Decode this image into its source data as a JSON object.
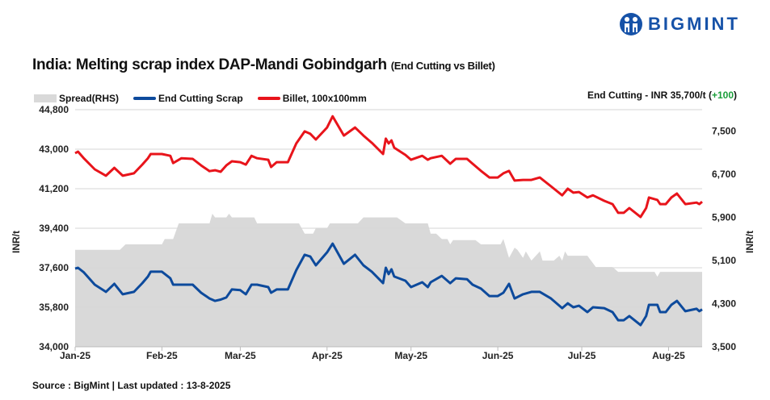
{
  "logo": {
    "text": "BIGMINT",
    "color": "#1652a8"
  },
  "title": {
    "main": "India: Melting scrap index DAP-Mandi Gobindgarh",
    "sub": "(End Cutting vs Billet)"
  },
  "headline": {
    "prefix": "End Cutting - INR 35,700/t (",
    "change": "+100",
    "suffix": ")",
    "change_color": "#1a9e3a"
  },
  "source": "Source : BigMint | Last updated : 13-8-2025",
  "chart_data": {
    "type": "line",
    "legend_position": "top-left",
    "grid": "horizontal",
    "xlabel": "",
    "ylabel_left": "INR/t",
    "ylabel_right": "INR/t",
    "ylim_left": [
      34000,
      44800
    ],
    "ylim_right": [
      3500,
      7900
    ],
    "yticks_left": [
      "34,000",
      "35,800",
      "37,600",
      "39,400",
      "41,200",
      "43,000",
      "44,800"
    ],
    "yticks_left_values": [
      34000,
      35800,
      37600,
      39400,
      41200,
      43000,
      44800
    ],
    "yticks_right": [
      "3,500",
      "4,300",
      "5,100",
      "5,900",
      "6,700",
      "7,500"
    ],
    "yticks_right_values": [
      3500,
      4300,
      5100,
      5900,
      6700,
      7500
    ],
    "xticks": [
      "Jan-25",
      "Feb-25",
      "Mar-25",
      "Apr-25",
      "May-25",
      "Jun-25",
      "Jul-25",
      "Aug-25"
    ],
    "xticks_dates": [
      "2025-01-01",
      "2025-02-01",
      "2025-03-01",
      "2025-04-01",
      "2025-05-01",
      "2025-06-01",
      "2025-07-01",
      "2025-08-01"
    ],
    "x_range": [
      "2025-01-01",
      "2025-08-13"
    ],
    "series": [
      {
        "name": "Spread(RHS)",
        "type": "area",
        "axis": "right",
        "color": "#d9d9d9",
        "points": [
          [
            "2025-01-01",
            5300
          ],
          [
            "2025-01-17",
            5300
          ],
          [
            "2025-01-19",
            5400
          ],
          [
            "2025-02-01",
            5400
          ],
          [
            "2025-02-02",
            5500
          ],
          [
            "2025-02-05",
            5500
          ],
          [
            "2025-02-07",
            5790
          ],
          [
            "2025-02-18",
            5790
          ],
          [
            "2025-02-19",
            5970
          ],
          [
            "2025-02-20",
            5900
          ],
          [
            "2025-02-24",
            5900
          ],
          [
            "2025-02-25",
            5970
          ],
          [
            "2025-02-26",
            5900
          ],
          [
            "2025-03-06",
            5900
          ],
          [
            "2025-03-07",
            5790
          ],
          [
            "2025-03-22",
            5790
          ],
          [
            "2025-03-24",
            5600
          ],
          [
            "2025-03-27",
            5600
          ],
          [
            "2025-03-28",
            5700
          ],
          [
            "2025-04-01",
            5700
          ],
          [
            "2025-04-02",
            5790
          ],
          [
            "2025-04-12",
            5790
          ],
          [
            "2025-04-14",
            5900
          ],
          [
            "2025-04-26",
            5900
          ],
          [
            "2025-04-29",
            5790
          ],
          [
            "2025-05-07",
            5790
          ],
          [
            "2025-05-08",
            5600
          ],
          [
            "2025-05-10",
            5600
          ],
          [
            "2025-05-12",
            5500
          ],
          [
            "2025-05-14",
            5500
          ],
          [
            "2025-05-15",
            5400
          ],
          [
            "2025-05-16",
            5480
          ],
          [
            "2025-05-24",
            5480
          ],
          [
            "2025-05-26",
            5400
          ],
          [
            "2025-06-02",
            5400
          ],
          [
            "2025-06-03",
            5500
          ],
          [
            "2025-06-05",
            5150
          ],
          [
            "2025-06-07",
            5340
          ],
          [
            "2025-06-08",
            5300
          ],
          [
            "2025-06-10",
            5150
          ],
          [
            "2025-06-11",
            5270
          ],
          [
            "2025-06-13",
            5100
          ],
          [
            "2025-06-16",
            5270
          ],
          [
            "2025-06-17",
            5100
          ],
          [
            "2025-06-21",
            5100
          ],
          [
            "2025-06-23",
            5190
          ],
          [
            "2025-06-24",
            5100
          ],
          [
            "2025-06-25",
            5270
          ],
          [
            "2025-06-26",
            5190
          ],
          [
            "2025-07-03",
            5190
          ],
          [
            "2025-07-06",
            4980
          ],
          [
            "2025-07-12",
            4980
          ],
          [
            "2025-07-14",
            4890
          ],
          [
            "2025-07-27",
            4890
          ],
          [
            "2025-07-28",
            4800
          ],
          [
            "2025-07-29",
            4890
          ],
          [
            "2025-08-13",
            4890
          ]
        ]
      },
      {
        "name": "End Cutting Scrap",
        "type": "line",
        "axis": "left",
        "color": "#0d4a9c",
        "points": [
          [
            "2025-01-01",
            37560
          ],
          [
            "2025-01-02",
            37600
          ],
          [
            "2025-01-04",
            37400
          ],
          [
            "2025-01-08",
            36830
          ],
          [
            "2025-01-12",
            36500
          ],
          [
            "2025-01-15",
            36870
          ],
          [
            "2025-01-18",
            36390
          ],
          [
            "2025-01-22",
            36500
          ],
          [
            "2025-01-25",
            36900
          ],
          [
            "2025-01-27",
            37200
          ],
          [
            "2025-01-28",
            37420
          ],
          [
            "2025-02-01",
            37420
          ],
          [
            "2025-02-04",
            37120
          ],
          [
            "2025-02-05",
            36830
          ],
          [
            "2025-02-08",
            36830
          ],
          [
            "2025-02-12",
            36830
          ],
          [
            "2025-02-15",
            36460
          ],
          [
            "2025-02-18",
            36200
          ],
          [
            "2025-02-20",
            36090
          ],
          [
            "2025-02-22",
            36150
          ],
          [
            "2025-02-24",
            36250
          ],
          [
            "2025-02-26",
            36610
          ],
          [
            "2025-03-01",
            36580
          ],
          [
            "2025-03-03",
            36390
          ],
          [
            "2025-03-05",
            36830
          ],
          [
            "2025-03-07",
            36830
          ],
          [
            "2025-03-11",
            36720
          ],
          [
            "2025-03-12",
            36460
          ],
          [
            "2025-03-14",
            36610
          ],
          [
            "2025-03-18",
            36610
          ],
          [
            "2025-03-21",
            37490
          ],
          [
            "2025-03-24",
            38190
          ],
          [
            "2025-03-26",
            38110
          ],
          [
            "2025-03-28",
            37710
          ],
          [
            "2025-04-01",
            38300
          ],
          [
            "2025-04-03",
            38700
          ],
          [
            "2025-04-07",
            37780
          ],
          [
            "2025-04-11",
            38190
          ],
          [
            "2025-04-14",
            37710
          ],
          [
            "2025-04-17",
            37420
          ],
          [
            "2025-04-21",
            36900
          ],
          [
            "2025-04-22",
            37600
          ],
          [
            "2025-04-23",
            37310
          ],
          [
            "2025-04-24",
            37530
          ],
          [
            "2025-04-25",
            37200
          ],
          [
            "2025-04-29",
            37010
          ],
          [
            "2025-05-01",
            36720
          ],
          [
            "2025-05-05",
            36940
          ],
          [
            "2025-05-07",
            36720
          ],
          [
            "2025-05-08",
            36940
          ],
          [
            "2025-05-12",
            37230
          ],
          [
            "2025-05-15",
            36900
          ],
          [
            "2025-05-17",
            37120
          ],
          [
            "2025-05-21",
            37080
          ],
          [
            "2025-05-23",
            36830
          ],
          [
            "2025-05-26",
            36650
          ],
          [
            "2025-05-29",
            36310
          ],
          [
            "2025-06-01",
            36310
          ],
          [
            "2025-06-03",
            36460
          ],
          [
            "2025-06-05",
            36870
          ],
          [
            "2025-06-07",
            36200
          ],
          [
            "2025-06-10",
            36390
          ],
          [
            "2025-06-13",
            36500
          ],
          [
            "2025-06-16",
            36500
          ],
          [
            "2025-06-20",
            36200
          ],
          [
            "2025-06-24",
            35760
          ],
          [
            "2025-06-26",
            35980
          ],
          [
            "2025-06-28",
            35800
          ],
          [
            "2025-06-30",
            35870
          ],
          [
            "2025-07-03",
            35580
          ],
          [
            "2025-07-05",
            35800
          ],
          [
            "2025-07-09",
            35760
          ],
          [
            "2025-07-12",
            35580
          ],
          [
            "2025-07-14",
            35210
          ],
          [
            "2025-07-16",
            35210
          ],
          [
            "2025-07-18",
            35400
          ],
          [
            "2025-07-22",
            34990
          ],
          [
            "2025-07-24",
            35400
          ],
          [
            "2025-07-25",
            35910
          ],
          [
            "2025-07-28",
            35910
          ],
          [
            "2025-07-29",
            35580
          ],
          [
            "2025-07-31",
            35580
          ],
          [
            "2025-08-02",
            35910
          ],
          [
            "2025-08-04",
            36090
          ],
          [
            "2025-08-07",
            35620
          ],
          [
            "2025-08-11",
            35730
          ],
          [
            "2025-08-12",
            35620
          ],
          [
            "2025-08-13",
            35700
          ]
        ]
      },
      {
        "name": "Billet, 100x100mm",
        "type": "line",
        "axis": "left",
        "color": "#e8141b",
        "points": [
          [
            "2025-01-01",
            42815
          ],
          [
            "2025-01-02",
            42890
          ],
          [
            "2025-01-04",
            42600
          ],
          [
            "2025-01-08",
            42080
          ],
          [
            "2025-01-12",
            41790
          ],
          [
            "2025-01-15",
            42150
          ],
          [
            "2025-01-18",
            41790
          ],
          [
            "2025-01-22",
            41900
          ],
          [
            "2025-01-25",
            42300
          ],
          [
            "2025-01-27",
            42590
          ],
          [
            "2025-01-28",
            42780
          ],
          [
            "2025-02-01",
            42780
          ],
          [
            "2025-02-04",
            42700
          ],
          [
            "2025-02-05",
            42370
          ],
          [
            "2025-02-08",
            42590
          ],
          [
            "2025-02-12",
            42560
          ],
          [
            "2025-02-15",
            42260
          ],
          [
            "2025-02-18",
            42000
          ],
          [
            "2025-02-20",
            42040
          ],
          [
            "2025-02-22",
            41970
          ],
          [
            "2025-02-24",
            42260
          ],
          [
            "2025-02-26",
            42450
          ],
          [
            "2025-03-01",
            42410
          ],
          [
            "2025-03-03",
            42300
          ],
          [
            "2025-03-05",
            42700
          ],
          [
            "2025-03-07",
            42590
          ],
          [
            "2025-03-11",
            42520
          ],
          [
            "2025-03-12",
            42190
          ],
          [
            "2025-03-14",
            42410
          ],
          [
            "2025-03-18",
            42410
          ],
          [
            "2025-03-21",
            43260
          ],
          [
            "2025-03-24",
            43810
          ],
          [
            "2025-03-26",
            43700
          ],
          [
            "2025-03-28",
            43440
          ],
          [
            "2025-04-01",
            43990
          ],
          [
            "2025-04-03",
            44500
          ],
          [
            "2025-04-07",
            43620
          ],
          [
            "2025-04-11",
            43990
          ],
          [
            "2025-04-14",
            43620
          ],
          [
            "2025-04-17",
            43290
          ],
          [
            "2025-04-21",
            42780
          ],
          [
            "2025-04-22",
            43480
          ],
          [
            "2025-04-23",
            43260
          ],
          [
            "2025-04-24",
            43400
          ],
          [
            "2025-04-25",
            43070
          ],
          [
            "2025-04-29",
            42740
          ],
          [
            "2025-05-01",
            42520
          ],
          [
            "2025-05-05",
            42700
          ],
          [
            "2025-05-07",
            42520
          ],
          [
            "2025-05-08",
            42590
          ],
          [
            "2025-05-12",
            42700
          ],
          [
            "2025-05-15",
            42340
          ],
          [
            "2025-05-17",
            42560
          ],
          [
            "2025-05-21",
            42560
          ],
          [
            "2025-05-23",
            42340
          ],
          [
            "2025-05-26",
            42010
          ],
          [
            "2025-05-29",
            41710
          ],
          [
            "2025-06-01",
            41710
          ],
          [
            "2025-06-03",
            41900
          ],
          [
            "2025-06-05",
            42010
          ],
          [
            "2025-06-07",
            41570
          ],
          [
            "2025-06-10",
            41600
          ],
          [
            "2025-06-13",
            41600
          ],
          [
            "2025-06-16",
            41710
          ],
          [
            "2025-06-20",
            41310
          ],
          [
            "2025-06-24",
            40900
          ],
          [
            "2025-06-26",
            41200
          ],
          [
            "2025-06-28",
            41020
          ],
          [
            "2025-06-30",
            41050
          ],
          [
            "2025-07-03",
            40800
          ],
          [
            "2025-07-05",
            40900
          ],
          [
            "2025-07-09",
            40650
          ],
          [
            "2025-07-12",
            40500
          ],
          [
            "2025-07-14",
            40100
          ],
          [
            "2025-07-16",
            40100
          ],
          [
            "2025-07-18",
            40320
          ],
          [
            "2025-07-22",
            39910
          ],
          [
            "2025-07-24",
            40320
          ],
          [
            "2025-07-25",
            40800
          ],
          [
            "2025-07-28",
            40690
          ],
          [
            "2025-07-29",
            40500
          ],
          [
            "2025-07-31",
            40500
          ],
          [
            "2025-08-02",
            40800
          ],
          [
            "2025-08-04",
            40980
          ],
          [
            "2025-08-07",
            40500
          ],
          [
            "2025-08-11",
            40570
          ],
          [
            "2025-08-12",
            40500
          ],
          [
            "2025-08-13",
            40610
          ]
        ]
      }
    ]
  }
}
